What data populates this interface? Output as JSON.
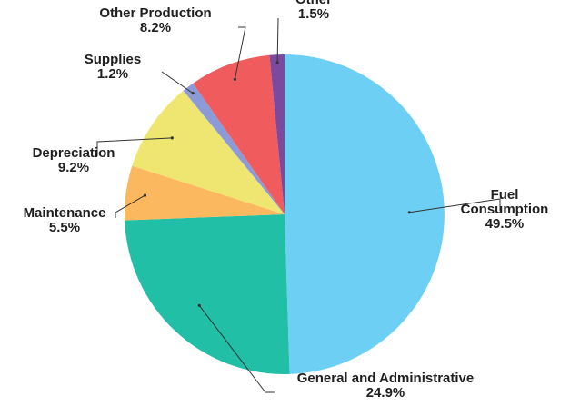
{
  "chart_data": {
    "type": "pie",
    "title": "",
    "legend": "none",
    "slices": [
      {
        "label_lines": [
          "Fuel",
          "Consumption"
        ],
        "pct_label": "49.5%",
        "value": 49.5,
        "color": "#6dcff3"
      },
      {
        "label_lines": [
          "General and Administrative"
        ],
        "pct_label": "24.9%",
        "value": 24.9,
        "color": "#20bfa6"
      },
      {
        "label_lines": [
          "Maintenance"
        ],
        "pct_label": "5.5%",
        "value": 5.5,
        "color": "#fbb85f"
      },
      {
        "label_lines": [
          "Depreciation"
        ],
        "pct_label": "9.2%",
        "value": 9.2,
        "color": "#efe671"
      },
      {
        "label_lines": [
          "Supplies"
        ],
        "pct_label": "1.2%",
        "value": 1.2,
        "color": "#8c9bd8"
      },
      {
        "label_lines": [
          "Other Production"
        ],
        "pct_label": "8.2%",
        "value": 8.2,
        "color": "#f05c5e"
      },
      {
        "label_lines": [
          "Other"
        ],
        "pct_label": "1.5%",
        "value": 1.5,
        "color": "#7b4a9e"
      }
    ]
  }
}
